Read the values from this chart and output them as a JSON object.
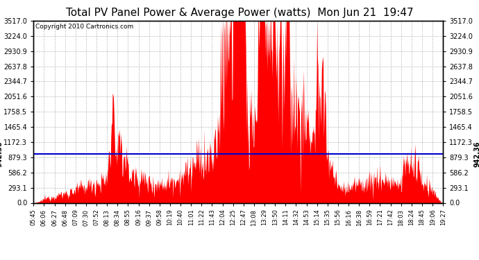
{
  "title": "Total PV Panel Power & Average Power (watts)  Mon Jun 21  19:47",
  "copyright": "Copyright 2010 Cartronics.com",
  "ymax": 3517.0,
  "yticks": [
    0.0,
    293.1,
    586.2,
    879.3,
    1172.3,
    1465.4,
    1758.5,
    2051.6,
    2344.7,
    2637.8,
    2930.9,
    3224.0,
    3517.0
  ],
  "average_power": 942.36,
  "average_label": "942.36",
  "bg_color": "#ffffff",
  "plot_bg_color": "#ffffff",
  "fill_color": "#ff0000",
  "line_color": "#0000cc",
  "grid_color": "#aaaaaa",
  "title_fontsize": 11,
  "xtick_labels": [
    "05:45",
    "06:06",
    "06:27",
    "06:48",
    "07:09",
    "07:30",
    "07:52",
    "08:13",
    "08:34",
    "08:55",
    "09:16",
    "09:37",
    "09:58",
    "10:19",
    "10:40",
    "11:01",
    "11:22",
    "11:43",
    "12:04",
    "12:25",
    "12:47",
    "13:08",
    "13:29",
    "13:50",
    "14:11",
    "14:32",
    "14:53",
    "15:14",
    "15:35",
    "15:56",
    "16:16",
    "16:38",
    "16:59",
    "17:21",
    "17:42",
    "18:03",
    "18:24",
    "18:45",
    "19:06",
    "19:27"
  ]
}
